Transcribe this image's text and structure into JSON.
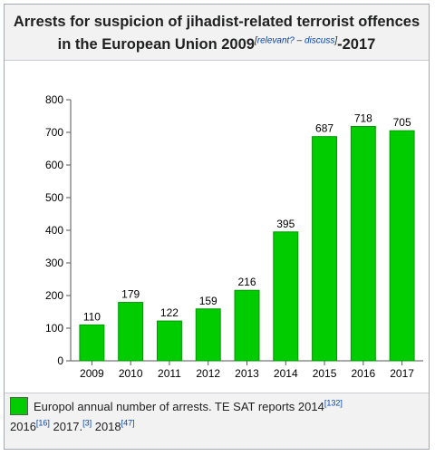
{
  "title": {
    "line1": "Arrests for suspicion of jihadist-related terrorist offences",
    "line2_prefix": "in the European Union 2009",
    "note_open": "[",
    "relevant_link": "relevant?",
    "note_dash": " – ",
    "discuss_link": "discuss",
    "note_close": "]",
    "line2_suffix": "-2017"
  },
  "legend": {
    "swatch_color": "#00cc00",
    "label": "Europol annual number of arrests. TE SAT reports 2014",
    "ref1": "[132]",
    "year2": "2016",
    "ref2": "[16]",
    "year3": " 2017.",
    "ref3": "[3]",
    "year4": " 2018",
    "ref4": "[47]"
  },
  "chart_data": {
    "type": "bar",
    "categories": [
      "2009",
      "2010",
      "2011",
      "2012",
      "2013",
      "2014",
      "2015",
      "2016",
      "2017"
    ],
    "values": [
      110,
      179,
      122,
      159,
      216,
      395,
      687,
      718,
      705
    ],
    "data_labels": [
      "110",
      "179",
      "122",
      "159",
      "216",
      "395",
      "687",
      "718",
      "705"
    ],
    "yticks": [
      "0",
      "100",
      "200",
      "300",
      "400",
      "500",
      "600",
      "700",
      "800"
    ],
    "ylim": [
      0,
      800
    ],
    "bar_color": "#00cc00",
    "bar_stroke": "#009900",
    "grid": false,
    "title": "",
    "xlabel": "",
    "ylabel": ""
  }
}
